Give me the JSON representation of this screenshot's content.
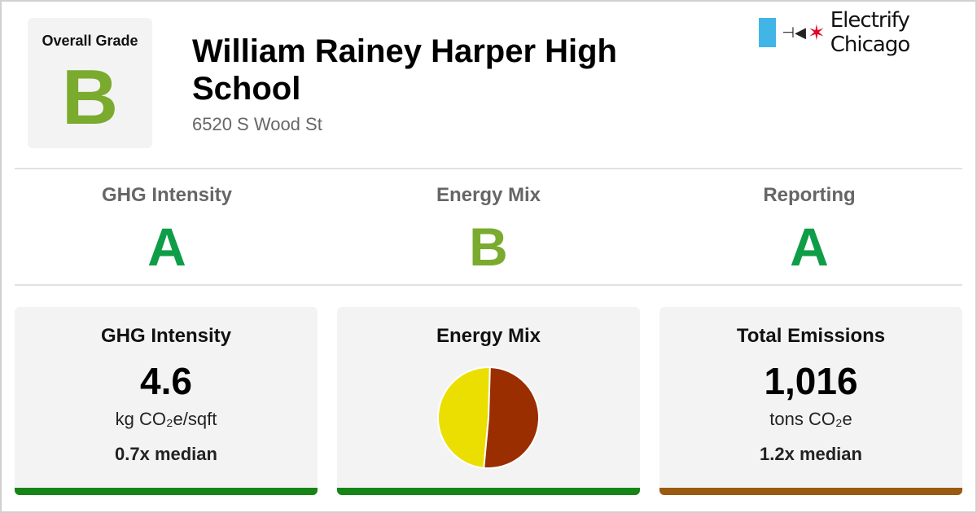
{
  "colors": {
    "grade_a": "#0f9d48",
    "grade_b": "#7aab2e",
    "bar_good": "#178417",
    "bar_bad": "#9a5a12",
    "pie_yellow": "#eadf00",
    "pie_brown": "#9a2e00"
  },
  "overall": {
    "label": "Overall Grade",
    "grade": "B"
  },
  "building": {
    "name": "William Rainey Harper High School",
    "address": "6520 S Wood St"
  },
  "logo": {
    "text": "Electrify Chicago",
    "icon": "plug-icon"
  },
  "subgrades": [
    {
      "label": "GHG Intensity",
      "grade": "A"
    },
    {
      "label": "Energy Mix",
      "grade": "B"
    },
    {
      "label": "Reporting",
      "grade": "A"
    }
  ],
  "cards": {
    "ghg": {
      "title": "GHG Intensity",
      "value": "4.6",
      "unit": "kg CO₂e/sqft",
      "median": "0.7x median"
    },
    "mix": {
      "title": "Energy Mix"
    },
    "total": {
      "title": "Total Emissions",
      "value": "1,016",
      "unit": "tons CO₂e",
      "median": "1.2x median"
    }
  },
  "chart_data": {
    "type": "pie",
    "title": "",
    "slices": [
      {
        "label": "",
        "value": 49,
        "color": "#eadf00"
      },
      {
        "label": "",
        "value": 51,
        "color": "#9a2e00"
      }
    ]
  }
}
